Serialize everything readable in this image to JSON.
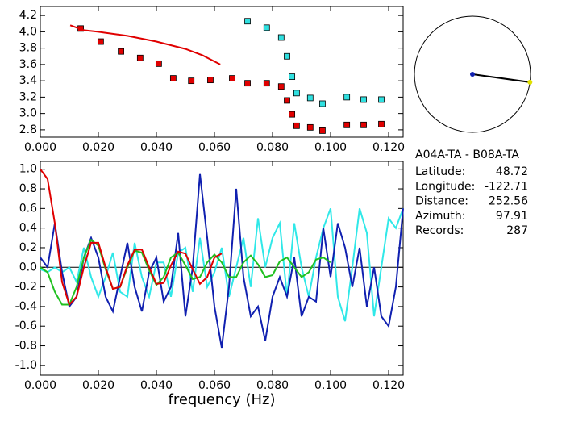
{
  "chart_data": [
    {
      "type": "scatter",
      "xlim": [
        0,
        0.125
      ],
      "xticks": [
        {
          "value": 0,
          "label": "0.000"
        },
        {
          "value": 0.02,
          "label": "0.020"
        },
        {
          "value": 0.04,
          "label": "0.040"
        },
        {
          "value": 0.06,
          "label": "0.060"
        },
        {
          "value": 0.08,
          "label": "0.080"
        },
        {
          "value": 0.1,
          "label": "0.100"
        },
        {
          "value": 0.12,
          "label": "0.120"
        }
      ],
      "ylim": [
        2.71,
        4.31
      ],
      "yticks": [
        2.8,
        {
          "value": 3.0,
          "label": "3.0"
        },
        3.2,
        3.4,
        3.6,
        3.8,
        {
          "value": 4.0,
          "label": "4.0"
        },
        4.2
      ],
      "series": [
        {
          "mode": "markers",
          "color": "#e00000",
          "x": [
            0.0139,
            0.0208,
            0.0278,
            0.0344,
            0.0408,
            0.0458,
            0.052,
            0.0586,
            0.0661,
            0.0714,
            0.078,
            0.083,
            0.085,
            0.0867,
            0.0883,
            0.093,
            0.0972,
            0.1056,
            0.1114,
            0.1175
          ],
          "values": [
            4.04,
            3.88,
            3.76,
            3.68,
            3.61,
            3.43,
            3.4,
            3.41,
            3.43,
            3.37,
            3.37,
            3.33,
            3.16,
            2.99,
            2.85,
            2.83,
            2.79,
            2.86,
            2.86,
            2.87
          ]
        },
        {
          "mode": "markers",
          "color": "#30e0e0",
          "x": [
            0.0714,
            0.078,
            0.083,
            0.085,
            0.0867,
            0.0883,
            0.093,
            0.0972,
            0.1056,
            0.1114,
            0.1175
          ],
          "values": [
            4.13,
            4.05,
            3.93,
            3.7,
            3.45,
            3.25,
            3.19,
            3.12,
            3.2,
            3.17,
            3.17
          ]
        },
        {
          "mode": "lines",
          "color": "#e00000",
          "x": [
            0.0103,
            0.015,
            0.02,
            0.03,
            0.04,
            0.05,
            0.056,
            0.062
          ],
          "values": [
            4.08,
            4.02,
            4.0,
            3.95,
            3.88,
            3.79,
            3.71,
            3.6
          ]
        }
      ]
    },
    {
      "type": "line",
      "xlabel": "frequency (Hz)",
      "xlim": [
        0,
        0.125
      ],
      "xticks": [
        {
          "value": 0,
          "label": "0.000"
        },
        {
          "value": 0.02,
          "label": "0.020"
        },
        {
          "value": 0.04,
          "label": "0.040"
        },
        {
          "value": 0.06,
          "label": "0.060"
        },
        {
          "value": 0.08,
          "label": "0.080"
        },
        {
          "value": 0.1,
          "label": "0.100"
        },
        {
          "value": 0.12,
          "label": "0.120"
        }
      ],
      "ylim": [
        -1.1,
        1.08
      ],
      "yticks": [
        {
          "value": -1.0,
          "label": "-1.0"
        },
        -0.8,
        -0.6,
        -0.4,
        -0.2,
        {
          "value": 0.0,
          "label": "0.0"
        },
        0.2,
        0.4,
        0.6,
        0.8,
        {
          "value": 1.0,
          "label": "1.0"
        }
      ],
      "zero_line": true,
      "x": [
        0,
        0.0025,
        0.005,
        0.0075,
        0.01,
        0.0125,
        0.015,
        0.0175,
        0.02,
        0.0225,
        0.025,
        0.0275,
        0.03,
        0.0325,
        0.035,
        0.0375,
        0.04,
        0.0425,
        0.045,
        0.0475,
        0.05,
        0.0525,
        0.055,
        0.0575,
        0.06,
        0.0625,
        0.065,
        0.0675,
        0.07,
        0.0725,
        0.075,
        0.0775,
        0.08,
        0.0825,
        0.085,
        0.0875,
        0.09,
        0.0925,
        0.095,
        0.0975,
        0.1,
        0.1025,
        0.105,
        0.1075,
        0.11,
        0.1125,
        0.115,
        0.1175,
        0.12,
        0.1225,
        0.125
      ],
      "series": [
        {
          "color": "#30e8e8",
          "values": [
            -0.02,
            -0.05,
            0.0,
            -0.05,
            0.0,
            -0.15,
            0.2,
            -0.1,
            -0.3,
            -0.1,
            0.15,
            -0.25,
            -0.3,
            0.25,
            -0.1,
            -0.3,
            0.05,
            0.05,
            -0.3,
            0.15,
            0.2,
            -0.25,
            0.3,
            -0.2,
            -0.05,
            0.2,
            -0.3,
            0.0,
            0.3,
            -0.2,
            0.5,
            0.0,
            0.3,
            0.45,
            -0.3,
            0.45,
            0.0,
            -0.3,
            0.1,
            0.4,
            0.6,
            -0.3,
            -0.55,
            0.0,
            0.6,
            0.35,
            -0.5,
            0.0,
            0.5,
            0.4,
            0.6
          ]
        },
        {
          "color": "#1020b0",
          "values": [
            0.1,
            0.0,
            0.45,
            -0.05,
            -0.4,
            -0.3,
            0.1,
            0.3,
            0.1,
            -0.3,
            -0.45,
            -0.1,
            0.25,
            -0.2,
            -0.45,
            -0.05,
            0.1,
            -0.35,
            -0.2,
            0.35,
            -0.5,
            0.0,
            0.95,
            0.3,
            -0.4,
            -0.82,
            -0.2,
            0.8,
            -0.1,
            -0.5,
            -0.4,
            -0.75,
            -0.3,
            -0.1,
            -0.3,
            0.1,
            -0.5,
            -0.3,
            -0.35,
            0.4,
            -0.1,
            0.45,
            0.2,
            -0.2,
            0.2,
            -0.4,
            0.0,
            -0.5,
            -0.6,
            -0.2,
            0.6
          ]
        },
        {
          "color": "#20c020",
          "values": [
            0.0,
            -0.05,
            -0.25,
            -0.38,
            -0.38,
            -0.2,
            0.1,
            0.28,
            0.22,
            -0.02,
            -0.22,
            -0.2,
            0.0,
            0.17,
            0.15,
            -0.03,
            -0.18,
            -0.1,
            0.1,
            0.15,
            0.02,
            -0.12,
            -0.1,
            0.05,
            0.13,
            0.05,
            -0.1,
            -0.1,
            0.05,
            0.12,
            0.03,
            -0.1,
            -0.08,
            0.06,
            0.1,
            0.0,
            -0.1,
            -0.05,
            0.08,
            0.1,
            0.05,
            null,
            null,
            null,
            null,
            null,
            null,
            null,
            null,
            null,
            null
          ]
        },
        {
          "color": "#e00000",
          "values": [
            1.0,
            0.9,
            0.45,
            -0.15,
            -0.38,
            -0.3,
            0.0,
            0.25,
            0.25,
            0.0,
            -0.22,
            -0.2,
            0.02,
            0.18,
            0.18,
            0.0,
            -0.17,
            -0.16,
            0.02,
            0.16,
            0.14,
            -0.02,
            -0.17,
            -0.1,
            0.1,
            0.14,
            null,
            null,
            null,
            null,
            null,
            null,
            null,
            null,
            null,
            null,
            null,
            null,
            null,
            null,
            null,
            null,
            null,
            null,
            null,
            null,
            null,
            null,
            null,
            null,
            null
          ]
        }
      ]
    }
  ],
  "station_info": {
    "pair": "A04A-TA  -  B08A-TA",
    "rows": [
      {
        "label": "Latitude:",
        "value": 48.72
      },
      {
        "label": "Longitude:",
        "value": -122.71
      },
      {
        "label": "Distance:",
        "value": 252.56
      },
      {
        "label": "Azimuth:",
        "value": 97.91
      },
      {
        "label": "Records:",
        "value": 287
      }
    ],
    "azimuth_row": 3
  }
}
